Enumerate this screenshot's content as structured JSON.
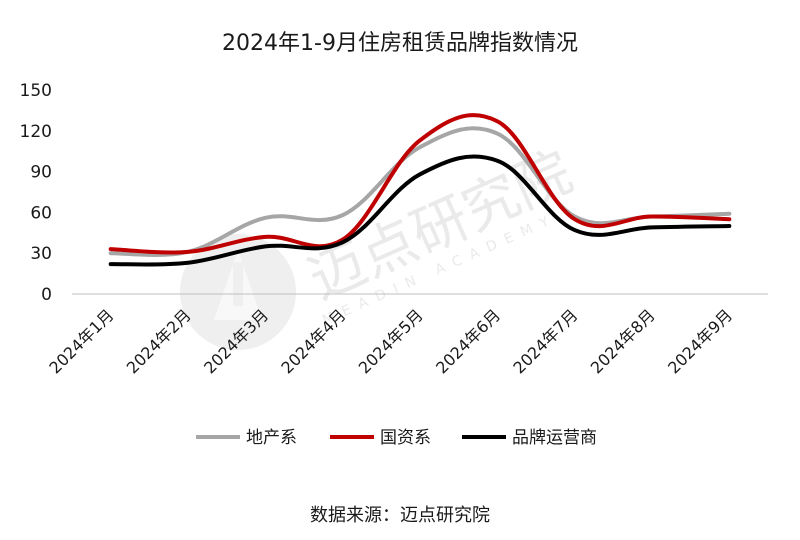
{
  "chart_data": {
    "type": "line",
    "title": "2024年1-9月住房租赁品牌指数情况",
    "categories": [
      "2024年1月",
      "2024年2月",
      "2024年3月",
      "2024年4月",
      "2024年5月",
      "2024年6月",
      "2024年7月",
      "2024年8月",
      "2024年9月"
    ],
    "series": [
      {
        "name": "地产系",
        "color": "#a6a6a6",
        "values": [
          30,
          31,
          56,
          58,
          108,
          118,
          57,
          57,
          59
        ]
      },
      {
        "name": "国资系",
        "color": "#c00000",
        "values": [
          33,
          31,
          42,
          40,
          113,
          127,
          55,
          57,
          55
        ]
      },
      {
        "name": "品牌运营商",
        "color": "#000000",
        "values": [
          22,
          23,
          35,
          38,
          88,
          98,
          47,
          49,
          50
        ]
      }
    ],
    "ylim": [
      0,
      150
    ],
    "yticks": [
      "150",
      "120",
      "90",
      "60",
      "30",
      "0"
    ],
    "ytick_values": [
      150,
      120,
      90,
      60,
      30,
      0
    ],
    "grid": false,
    "legend_position": "bottom"
  },
  "source": "数据来源：迈点研究院",
  "watermark": {
    "cn": "迈点研究院",
    "en": "MEADIN ACADEMY"
  }
}
